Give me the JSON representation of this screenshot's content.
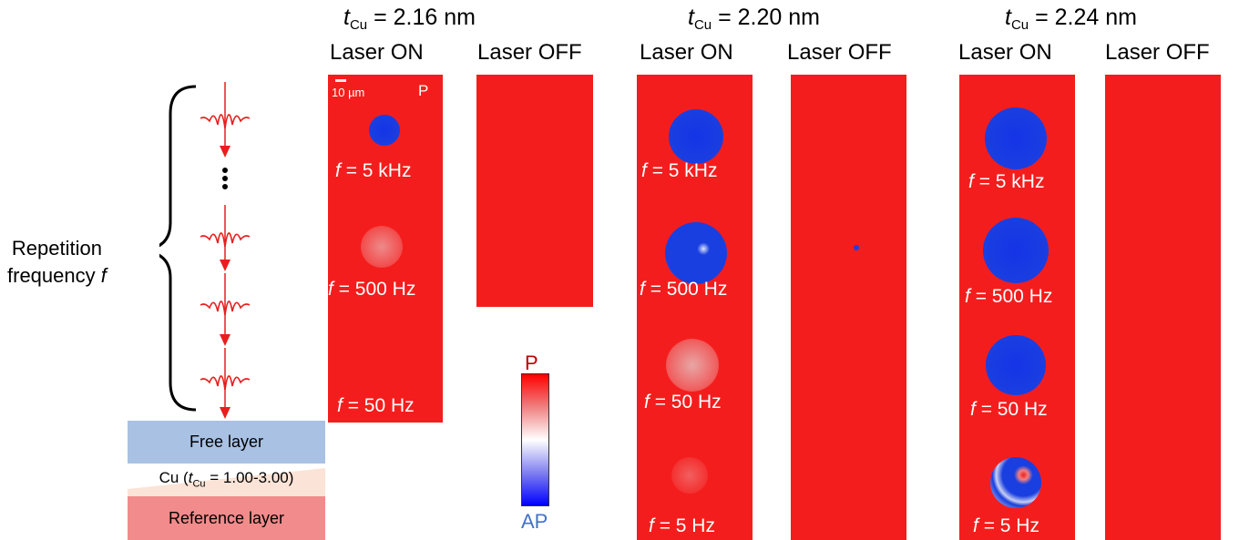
{
  "groups": [
    {
      "t_symbol": "t",
      "t_sub": "Cu",
      "t_value": "= 2.16 nm"
    },
    {
      "t_symbol": "t",
      "t_sub": "Cu",
      "t_value": "= 2.20 nm"
    },
    {
      "t_symbol": "t",
      "t_sub": "Cu",
      "t_value": "= 2.24 nm"
    }
  ],
  "column_labels": {
    "on": "Laser ON",
    "off": "Laser OFF"
  },
  "freq_symbol": "f",
  "freq_labels": [
    "= 5 kHz",
    "= 500 Hz",
    "= 50 Hz",
    "= 5 Hz"
  ],
  "scale_bar": "10 µm",
  "state_marker": "P",
  "colorbar": {
    "top": "P",
    "bottom": "AP",
    "top_color": "#c00000",
    "bottom_color": "#4472c4"
  },
  "repetition": {
    "line1": "Repetition",
    "line2": "frequency",
    "symbol": "f"
  },
  "stack": {
    "free_layer": "Free layer",
    "spacer_prefix": "Cu (",
    "spacer_symbol": "t",
    "spacer_sub": "Cu",
    "spacer_suffix": " = 1.00-3.00)",
    "reference_layer": "Reference layer"
  },
  "colors": {
    "parallel_red": "#f41d1d",
    "antiparallel_blue": "#1a3fe0",
    "free_layer": "#a9c1e3",
    "spacer": "#fbe4d7",
    "reference_layer": "#f28b8b",
    "pulse": "#e81e1e"
  }
}
